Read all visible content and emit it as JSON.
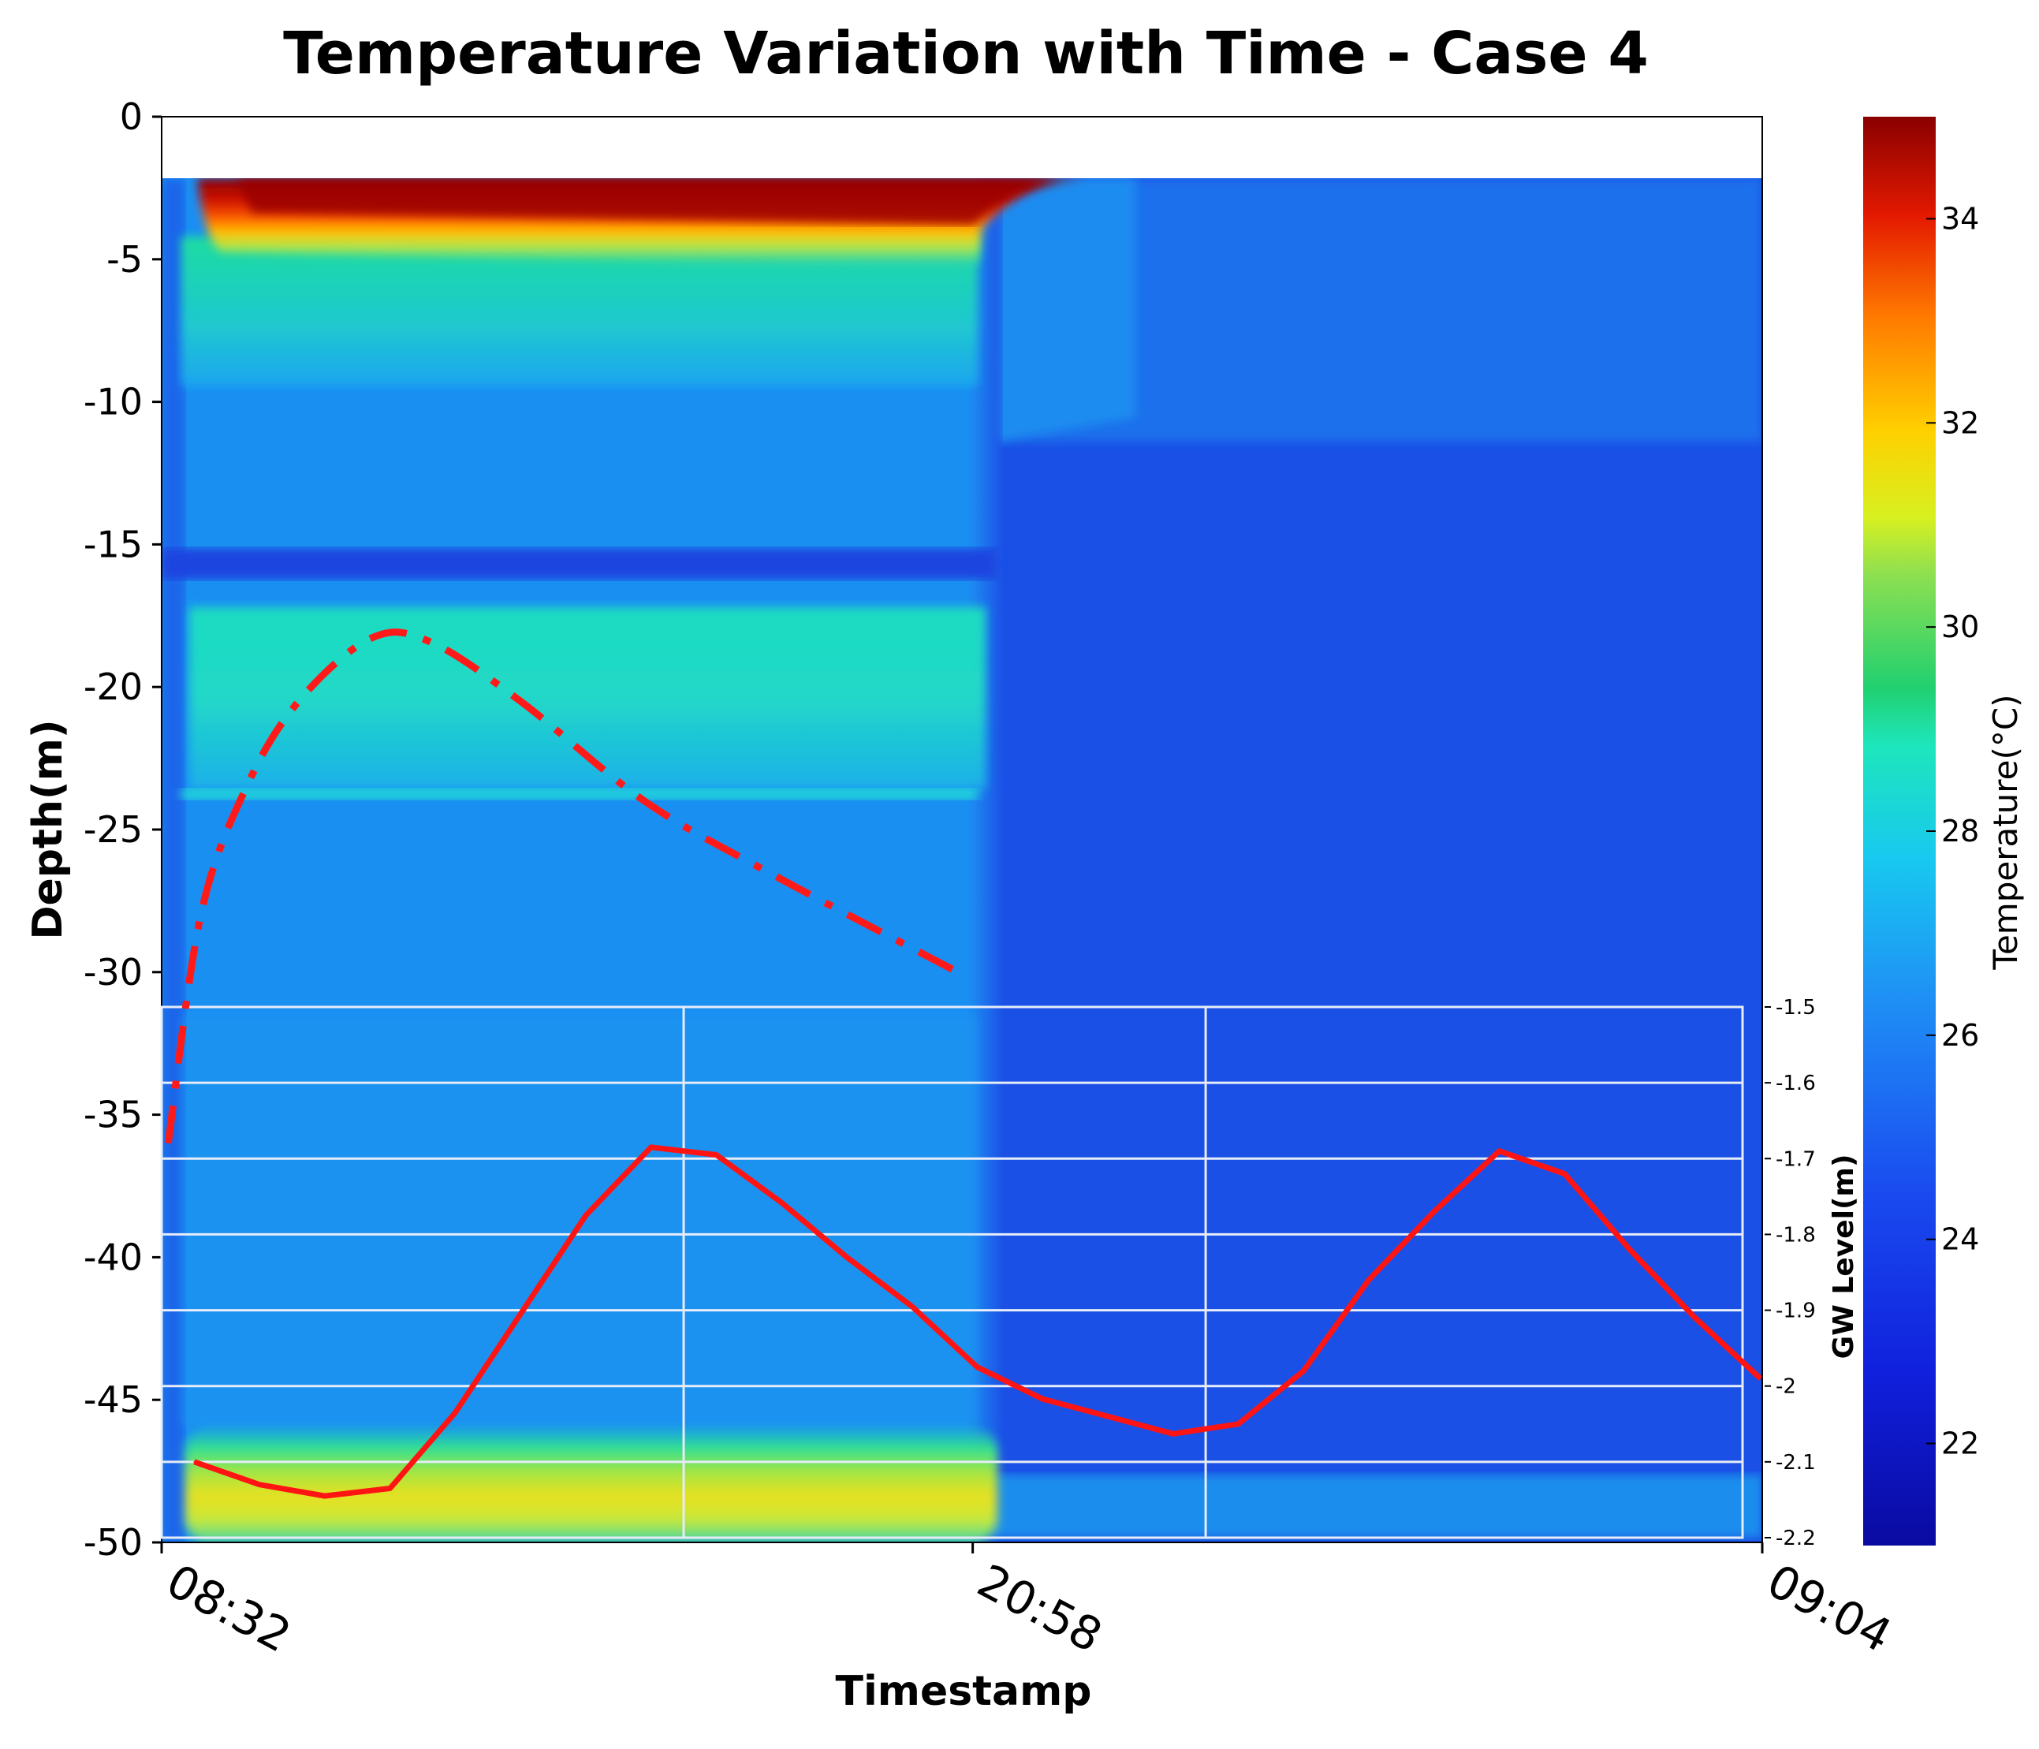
{
  "chart_data": {
    "type": "heatmap",
    "title": "Temperature Variation with Time - Case 4",
    "xlabel": "Timestamp",
    "ylabel": "Depth(m)",
    "x_tick_labels": [
      "08:32",
      "20:58",
      "09:04"
    ],
    "x_hours": [
      0,
      12.43,
      24.53
    ],
    "y_ticks": [
      0,
      -5,
      -10,
      -15,
      -20,
      -25,
      -30,
      -35,
      -40,
      -45,
      -50
    ],
    "ylim": [
      -50,
      0
    ],
    "colorbar": {
      "label": "Temperature(°C)",
      "range": [
        21,
        35
      ],
      "ticks": [
        22,
        24,
        26,
        28,
        30,
        32,
        34
      ],
      "colormap": "jet"
    },
    "heatmap_summary": {
      "data_top_depth_m": -2.2,
      "hot_layer_depth_m": [
        -2.2,
        -4.5
      ],
      "hot_layer_peak_temp_c": 35,
      "transition_time": "20:58",
      "warm_bottom_layer_depth_m": [
        -46.5,
        -50
      ],
      "warm_bottom_layer_temp_c": 29.5,
      "cold_band_depth_m": -15.8,
      "light_band_depth_m": -23.7
    },
    "gw_level": {
      "label": "GW Level(m)",
      "ticks": [
        -1.5,
        -1.6,
        -1.7,
        -1.8,
        -1.9,
        -2,
        -2.1,
        -2.2
      ],
      "tick_labels": [
        "-1.5",
        "-1.6",
        "-1.7",
        "-1.8",
        "-1.9",
        "-2",
        "-2.1",
        "-2.2"
      ],
      "ylim": [
        -2.2,
        -1.5
      ],
      "x_hours": [
        0.5,
        1.5,
        2.5,
        3.5,
        4.5,
        6.5,
        7.5,
        8.5,
        9.5,
        10.5,
        11.5,
        12.5,
        13.5,
        14.5,
        15.5,
        16.5,
        17.5,
        18.5,
        19.5,
        20.5,
        21.5,
        22.5,
        23.5,
        24.5
      ],
      "values": [
        -2.1,
        -2.13,
        -2.145,
        -2.135,
        -2.035,
        -1.775,
        -1.685,
        -1.695,
        -1.758,
        -1.83,
        -1.895,
        -1.975,
        -2.017,
        -2.04,
        -2.063,
        -2.05,
        -1.98,
        -1.86,
        -1.77,
        -1.69,
        -1.72,
        -1.82,
        -1.91,
        -1.99
      ]
    },
    "trend_curve": {
      "style": "dash-dot",
      "color": "#ff1a1a",
      "x_hours": [
        0.1,
        0.6,
        1.3,
        2.1,
        3.2,
        4.1,
        5.5,
        7.4,
        9.3,
        12.2
      ],
      "depth_m": [
        -36,
        -28,
        -23.5,
        -20.5,
        -18.3,
        -18.4,
        -20.5,
        -24,
        -26.5,
        -30
      ]
    }
  }
}
